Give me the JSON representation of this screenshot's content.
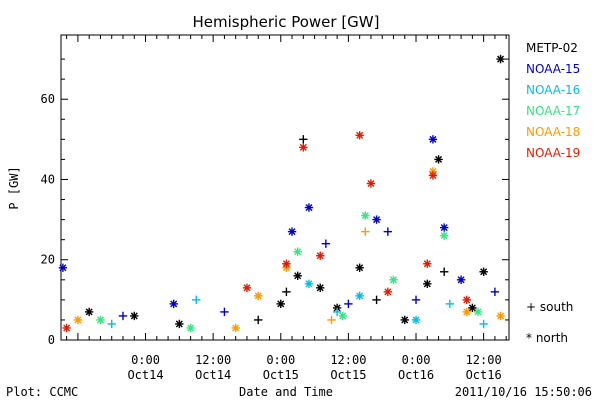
{
  "chart_data": {
    "type": "scatter",
    "title": "Hemispheric Power [GW]",
    "xlabel": "Date and Time",
    "ylabel": "P [GW]",
    "ylim": [
      0,
      76
    ],
    "xlim": [
      "2011-10-13 09:00",
      "2011-10-16 16:30"
    ],
    "y_ticks": [
      "0",
      "20",
      "40",
      "60"
    ],
    "x_ticks": [
      {
        "time": "0:00",
        "date": "Oct14"
      },
      {
        "time": "12:00",
        "date": "Oct14"
      },
      {
        "time": "0:00",
        "date": "Oct15"
      },
      {
        "time": "12:00",
        "date": "Oct15"
      },
      {
        "time": "0:00",
        "date": "Oct16"
      },
      {
        "time": "12:00",
        "date": "Oct16"
      }
    ],
    "grid": false,
    "legend_position": "right",
    "markers": {
      "south": "+",
      "north": "*"
    },
    "series": [
      {
        "name": "METP-02",
        "color": "#000000",
        "points": [
          [
            "2011-10-13 14:00",
            7,
            "north"
          ],
          [
            "2011-10-13 22:00",
            6,
            "north"
          ],
          [
            "2011-10-14 06:00",
            4,
            "north"
          ],
          [
            "2011-10-14 20:00",
            5,
            "south"
          ],
          [
            "2011-10-15 00:00",
            9,
            "north"
          ],
          [
            "2011-10-15 01:00",
            12,
            "south"
          ],
          [
            "2011-10-15 03:00",
            16,
            "north"
          ],
          [
            "2011-10-15 04:00",
            50,
            "south"
          ],
          [
            "2011-10-15 07:00",
            13,
            "north"
          ],
          [
            "2011-10-15 10:00",
            8,
            "north"
          ],
          [
            "2011-10-15 14:00",
            18,
            "north"
          ],
          [
            "2011-10-15 17:00",
            10,
            "south"
          ],
          [
            "2011-10-15 22:00",
            5,
            "north"
          ],
          [
            "2011-10-16 02:00",
            14,
            "north"
          ],
          [
            "2011-10-16 04:00",
            45,
            "north"
          ],
          [
            "2011-10-16 05:00",
            17,
            "south"
          ],
          [
            "2011-10-16 10:00",
            8,
            "north"
          ],
          [
            "2011-10-16 12:00",
            17,
            "north"
          ],
          [
            "2011-10-16 15:00",
            70,
            "north"
          ]
        ]
      },
      {
        "name": "NOAA-15",
        "color": "#0000cc",
        "points": [
          [
            "2011-10-13 09:20",
            18,
            "north"
          ],
          [
            "2011-10-13 20:00",
            6,
            "south"
          ],
          [
            "2011-10-14 05:00",
            9,
            "north"
          ],
          [
            "2011-10-14 14:00",
            7,
            "south"
          ],
          [
            "2011-10-15 02:00",
            27,
            "north"
          ],
          [
            "2011-10-15 05:00",
            33,
            "north"
          ],
          [
            "2011-10-15 08:00",
            24,
            "south"
          ],
          [
            "2011-10-15 12:00",
            9,
            "south"
          ],
          [
            "2011-10-15 17:00",
            30,
            "north"
          ],
          [
            "2011-10-15 19:00",
            27,
            "south"
          ],
          [
            "2011-10-16 00:00",
            10,
            "south"
          ],
          [
            "2011-10-16 03:00",
            50,
            "north"
          ],
          [
            "2011-10-16 05:00",
            28,
            "north"
          ],
          [
            "2011-10-16 08:00",
            15,
            "north"
          ],
          [
            "2011-10-16 14:00",
            12,
            "south"
          ]
        ]
      },
      {
        "name": "NOAA-16",
        "color": "#00bfe6",
        "points": [
          [
            "2011-10-13 18:00",
            4,
            "south"
          ],
          [
            "2011-10-14 09:00",
            10,
            "south"
          ],
          [
            "2011-10-15 05:00",
            14,
            "north"
          ],
          [
            "2011-10-15 10:00",
            7,
            "south"
          ],
          [
            "2011-10-15 14:00",
            11,
            "north"
          ],
          [
            "2011-10-16 00:00",
            5,
            "north"
          ],
          [
            "2011-10-16 06:00",
            9,
            "south"
          ],
          [
            "2011-10-16 12:00",
            4,
            "south"
          ]
        ]
      },
      {
        "name": "NOAA-17",
        "color": "#33e680",
        "points": [
          [
            "2011-10-13 16:00",
            5,
            "north"
          ],
          [
            "2011-10-14 08:00",
            3,
            "north"
          ],
          [
            "2011-10-15 03:00",
            22,
            "north"
          ],
          [
            "2011-10-15 11:00",
            6,
            "north"
          ],
          [
            "2011-10-15 15:00",
            31,
            "north"
          ],
          [
            "2011-10-15 20:00",
            15,
            "north"
          ],
          [
            "2011-10-16 05:00",
            26,
            "north"
          ],
          [
            "2011-10-16 11:00",
            7,
            "north"
          ]
        ]
      },
      {
        "name": "NOAA-18",
        "color": "#ff9900",
        "points": [
          [
            "2011-10-13 12:00",
            5,
            "north"
          ],
          [
            "2011-10-14 16:00",
            3,
            "north"
          ],
          [
            "2011-10-14 20:00",
            11,
            "north"
          ],
          [
            "2011-10-15 01:00",
            18,
            "north"
          ],
          [
            "2011-10-15 09:00",
            5,
            "south"
          ],
          [
            "2011-10-15 15:00",
            27,
            "south"
          ],
          [
            "2011-10-16 03:00",
            42,
            "north"
          ],
          [
            "2011-10-16 09:00",
            7,
            "north"
          ],
          [
            "2011-10-16 15:00",
            6,
            "north"
          ]
        ]
      },
      {
        "name": "NOAA-19",
        "color": "#e61a00",
        "points": [
          [
            "2011-10-13 10:00",
            3,
            "north"
          ],
          [
            "2011-10-14 18:00",
            13,
            "north"
          ],
          [
            "2011-10-15 01:00",
            19,
            "north"
          ],
          [
            "2011-10-15 04:00",
            48,
            "north"
          ],
          [
            "2011-10-15 07:00",
            21,
            "north"
          ],
          [
            "2011-10-15 14:00",
            51,
            "north"
          ],
          [
            "2011-10-15 16:00",
            39,
            "north"
          ],
          [
            "2011-10-15 19:00",
            12,
            "north"
          ],
          [
            "2011-10-16 02:00",
            19,
            "north"
          ],
          [
            "2011-10-16 03:00",
            41,
            "north"
          ],
          [
            "2011-10-16 09:00",
            10,
            "north"
          ]
        ]
      }
    ]
  },
  "legend": {
    "items": [
      {
        "label": "METP-02",
        "color": "#000000"
      },
      {
        "label": "NOAA-15",
        "color": "#0000cc"
      },
      {
        "label": "NOAA-16",
        "color": "#00bfe6"
      },
      {
        "label": "NOAA-17",
        "color": "#33e680"
      },
      {
        "label": "NOAA-18",
        "color": "#ff9900"
      },
      {
        "label": "NOAA-19",
        "color": "#e61a00"
      }
    ],
    "south_label": "+ south",
    "north_label": "* north"
  },
  "footer": {
    "left": "Plot: CCMC",
    "center": "Date and Time",
    "right": "2011/10/16 15:50:06"
  }
}
